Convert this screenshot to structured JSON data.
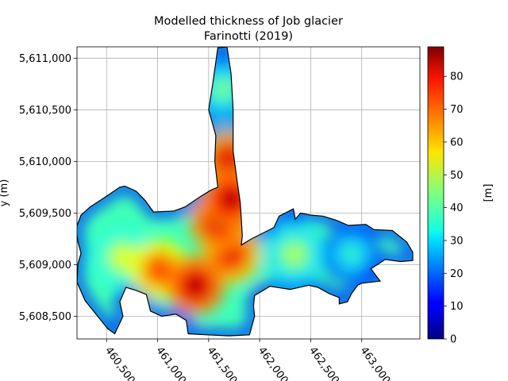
{
  "chart_data": {
    "type": "heatmap",
    "title": "Modelled thickness of Job glacier",
    "subtitle": "Farinotti (2019)",
    "xlabel": "",
    "ylabel": "y (m)",
    "x_ticks": [
      "460,500",
      "461,000",
      "461,500",
      "462,000",
      "462,500",
      "463,000"
    ],
    "x_tick_values": [
      460500,
      461000,
      461500,
      462000,
      462500,
      463000
    ],
    "y_ticks": [
      "5,611,000",
      "5,610,500",
      "5,610,000",
      "5,609,500",
      "5,609,000",
      "5,608,500"
    ],
    "y_tick_values": [
      5611000,
      5610500,
      5610000,
      5609500,
      5609000,
      5608500
    ],
    "xlim": [
      460210,
      463570
    ],
    "ylim": [
      5608280,
      5611110
    ],
    "grid": true,
    "colormap": "jet",
    "colorbar": {
      "label": "[m]",
      "vmin": 0,
      "vmax": 89,
      "ticks": [
        "0",
        "10",
        "20",
        "30",
        "40",
        "50",
        "60",
        "70",
        "80"
      ],
      "tick_values": [
        0,
        10,
        20,
        30,
        40,
        50,
        60,
        70,
        80
      ]
    },
    "outline_polygon": [
      [
        461680,
        5611110
      ],
      [
        461590,
        5611100
      ],
      [
        461540,
        5610750
      ],
      [
        461500,
        5610500
      ],
      [
        461570,
        5610250
      ],
      [
        461560,
        5610000
      ],
      [
        461590,
        5609750
      ],
      [
        461520,
        5609720
      ],
      [
        461420,
        5609660
      ],
      [
        461270,
        5609560
      ],
      [
        461160,
        5609520
      ],
      [
        460960,
        5609510
      ],
      [
        460880,
        5609620
      ],
      [
        460790,
        5609710
      ],
      [
        460680,
        5609760
      ],
      [
        460630,
        5609750
      ],
      [
        460480,
        5609650
      ],
      [
        460340,
        5609560
      ],
      [
        460250,
        5609480
      ],
      [
        460200,
        5609350
      ],
      [
        460220,
        5609220
      ],
      [
        460250,
        5609110
      ],
      [
        460220,
        5609010
      ],
      [
        460210,
        5608830
      ],
      [
        460290,
        5608650
      ],
      [
        460380,
        5608540
      ],
      [
        460510,
        5608380
      ],
      [
        460580,
        5608330
      ],
      [
        460660,
        5608500
      ],
      [
        460630,
        5608640
      ],
      [
        460690,
        5608780
      ],
      [
        460790,
        5608750
      ],
      [
        460890,
        5608710
      ],
      [
        460930,
        5608550
      ],
      [
        461040,
        5608500
      ],
      [
        461180,
        5608520
      ],
      [
        461280,
        5608460
      ],
      [
        461300,
        5608330
      ],
      [
        461480,
        5608320
      ],
      [
        461700,
        5608310
      ],
      [
        461900,
        5608320
      ],
      [
        461950,
        5608500
      ],
      [
        461940,
        5608600
      ],
      [
        461950,
        5608700
      ],
      [
        462100,
        5608790
      ],
      [
        462300,
        5608760
      ],
      [
        462480,
        5608800
      ],
      [
        462570,
        5608780
      ],
      [
        462680,
        5608720
      ],
      [
        462780,
        5608680
      ],
      [
        462780,
        5608620
      ],
      [
        462860,
        5608640
      ],
      [
        462900,
        5608720
      ],
      [
        462960,
        5608800
      ],
      [
        463000,
        5608820
      ],
      [
        463180,
        5608840
      ],
      [
        463090,
        5608960
      ],
      [
        463230,
        5609050
      ],
      [
        463380,
        5609030
      ],
      [
        463500,
        5609040
      ],
      [
        463500,
        5609120
      ],
      [
        463440,
        5609220
      ],
      [
        463300,
        5609330
      ],
      [
        463120,
        5609340
      ],
      [
        463040,
        5609390
      ],
      [
        462870,
        5609380
      ],
      [
        462750,
        5609430
      ],
      [
        462620,
        5609470
      ],
      [
        462500,
        5609480
      ],
      [
        462400,
        5609500
      ],
      [
        462350,
        5609440
      ],
      [
        462330,
        5609540
      ],
      [
        462190,
        5609470
      ],
      [
        462140,
        5609360
      ],
      [
        461920,
        5609250
      ],
      [
        461820,
        5609190
      ],
      [
        461830,
        5609280
      ],
      [
        461810,
        5609600
      ],
      [
        461780,
        5609800
      ],
      [
        461740,
        5610100
      ],
      [
        461740,
        5610500
      ],
      [
        461720,
        5610850
      ]
    ],
    "thickness_hotspots": [
      {
        "x": 461700,
        "y": 5610010,
        "thickness": 82
      },
      {
        "x": 461720,
        "y": 5609640,
        "thickness": 86
      },
      {
        "x": 461600,
        "y": 5609420,
        "thickness": 84
      },
      {
        "x": 461720,
        "y": 5609100,
        "thickness": 80
      },
      {
        "x": 461370,
        "y": 5608800,
        "thickness": 86
      },
      {
        "x": 461020,
        "y": 5608950,
        "thickness": 75
      },
      {
        "x": 460660,
        "y": 5609070,
        "thickness": 55
      },
      {
        "x": 462340,
        "y": 5609100,
        "thickness": 50
      },
      {
        "x": 462900,
        "y": 5609100,
        "thickness": 38
      },
      {
        "x": 461640,
        "y": 5610700,
        "thickness": 45
      }
    ]
  }
}
